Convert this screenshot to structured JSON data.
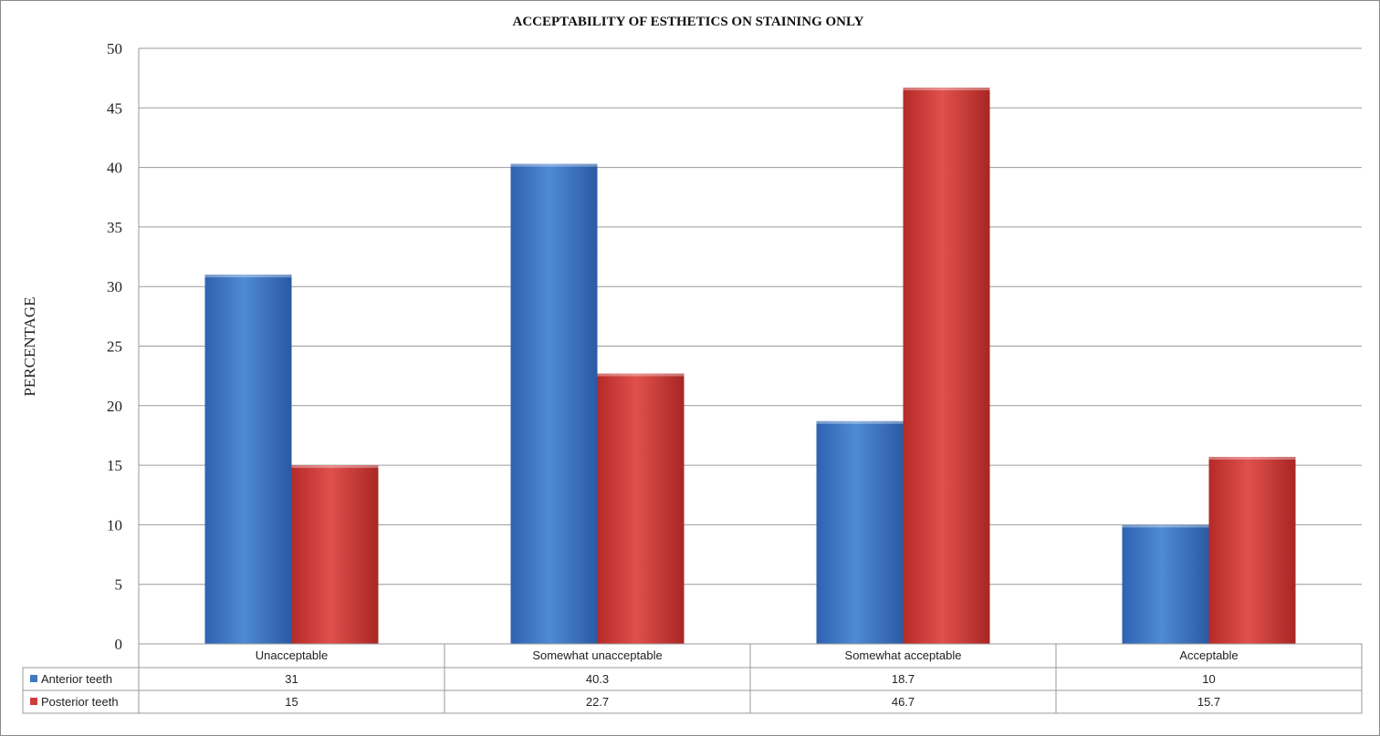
{
  "chart_data": {
    "type": "bar",
    "title": "ACCEPTABILITY OF ESTHETICS ON STAINING ONLY",
    "xlabel": "",
    "ylabel": "PERCENTAGE",
    "ylim": [
      0,
      50
    ],
    "yticks": [
      0,
      5,
      10,
      15,
      20,
      25,
      30,
      35,
      40,
      45,
      50
    ],
    "categories": [
      "Unacceptable",
      "Somewhat unacceptable",
      "Somewhat acceptable",
      "Acceptable"
    ],
    "series": [
      {
        "name": "Anterior teeth",
        "values": [
          31,
          40.3,
          18.7,
          10
        ],
        "value_labels": [
          "31",
          "40.3",
          "18.7",
          "10"
        ],
        "color": "#3f78c4"
      },
      {
        "name": "Posterior teeth",
        "values": [
          15,
          22.7,
          46.7,
          15.7
        ],
        "value_labels": [
          "15",
          "22.7",
          "46.7",
          "15.7"
        ],
        "color": "#d23c3a"
      }
    ],
    "grid": true,
    "legend": "data-table"
  }
}
